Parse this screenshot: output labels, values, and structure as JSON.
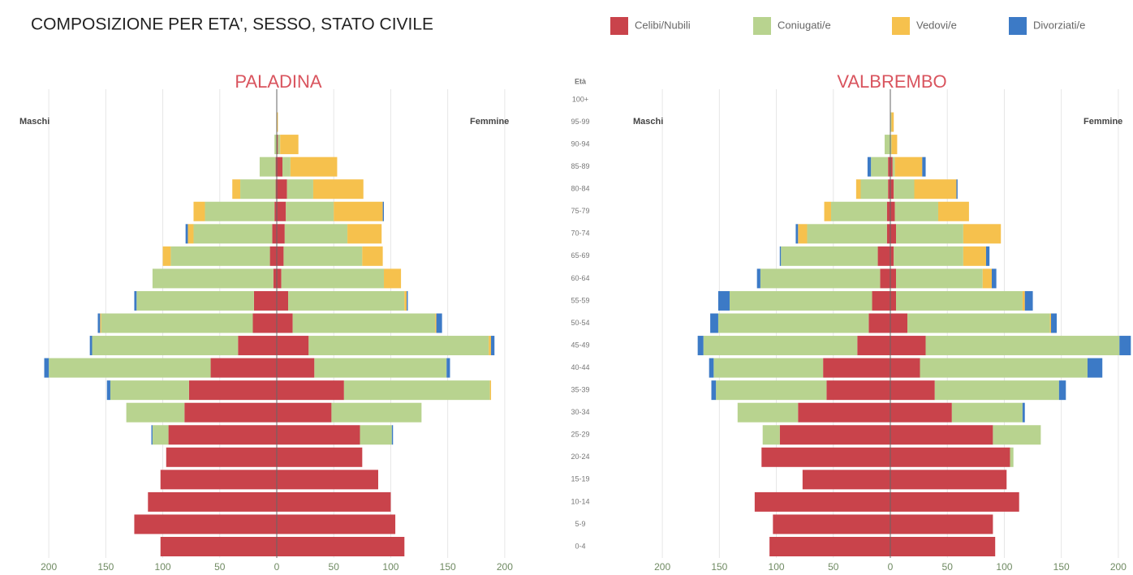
{
  "title": "COMPOSIZIONE PER ETA', SESSO, STATO CIVILE",
  "legend": [
    {
      "name": "Celibi/Nubili",
      "color": "#c9434b"
    },
    {
      "name": "Coniugati/e",
      "color": "#b8d38f"
    },
    {
      "name": "Vedovi/e",
      "color": "#f6c14d"
    },
    {
      "name": "Divorziati/e",
      "color": "#3c7ac6"
    }
  ],
  "age_label": "Età",
  "categories": [
    "100+",
    "95-99",
    "90-94",
    "85-89",
    "80-84",
    "75-79",
    "70-74",
    "65-69",
    "60-64",
    "55-59",
    "50-54",
    "45-49",
    "40-44",
    "35-39",
    "30-34",
    "25-29",
    "20-24",
    "15-19",
    "10-14",
    "5-9",
    "0-4"
  ],
  "chart_data": [
    {
      "type": "pyramid",
      "title": "PALADINA",
      "left_label": "Maschi",
      "right_label": "Femmine",
      "xlim": [
        -225,
        225
      ],
      "xticks": [
        {
          "value": -200,
          "label": "200"
        },
        {
          "value": -150,
          "label": "150"
        },
        {
          "value": -100,
          "label": "100"
        },
        {
          "value": -50,
          "label": "50"
        },
        0,
        50,
        100,
        150,
        200
      ],
      "grid": true,
      "series": [
        {
          "male": [
            0,
            0,
            0,
            -1,
            -1,
            -2,
            -4,
            -6,
            -3,
            -20,
            -21,
            -34,
            -58,
            -77,
            -81,
            -95,
            -97,
            -102,
            -113,
            -125,
            -102
          ],
          "female": [
            0,
            0,
            1,
            5,
            9,
            8,
            7,
            6,
            4,
            10,
            14,
            28,
            33,
            59,
            48,
            73,
            75,
            89,
            100,
            104,
            112
          ]
        },
        {
          "male": [
            0,
            0,
            -2,
            -14,
            -31,
            -61,
            -69,
            -87,
            -106,
            -103,
            -133,
            -128,
            -142,
            -69,
            -51,
            -14,
            0,
            0,
            0,
            0,
            0
          ],
          "female": [
            0,
            0,
            2,
            7,
            23,
            42,
            55,
            69,
            90,
            102,
            125,
            158,
            116,
            128,
            79,
            28,
            0,
            0,
            0,
            0,
            0
          ]
        },
        {
          "male": [
            0,
            0,
            0,
            0,
            -7,
            -10,
            -5,
            -7,
            0,
            0,
            -1,
            0,
            0,
            0,
            0,
            0,
            0,
            0,
            0,
            0,
            0
          ],
          "female": [
            0,
            1,
            16,
            41,
            44,
            43,
            30,
            18,
            15,
            2,
            1,
            2,
            0,
            1,
            0,
            0,
            0,
            0,
            0,
            0,
            0
          ]
        },
        {
          "male": [
            0,
            0,
            0,
            0,
            0,
            0,
            -2,
            0,
            0,
            -2,
            -2,
            -2,
            -4,
            -3,
            0,
            -1,
            0,
            0,
            0,
            0,
            0
          ],
          "female": [
            0,
            0,
            0,
            0,
            0,
            1,
            0,
            0,
            0,
            1,
            5,
            3,
            3,
            0,
            0,
            1,
            0,
            0,
            0,
            0,
            0
          ]
        }
      ]
    },
    {
      "type": "pyramid",
      "title": "VALBREMBO",
      "left_label": "Maschi",
      "right_label": "Femmine",
      "xlim": [
        -225,
        225
      ],
      "xticks": [
        {
          "value": -200,
          "label": "200"
        },
        {
          "value": -150,
          "label": "150"
        },
        {
          "value": -100,
          "label": "100"
        },
        {
          "value": -50,
          "label": "50"
        },
        0,
        50,
        100,
        150,
        200
      ],
      "grid": true,
      "series": [
        {
          "male": [
            0,
            0,
            0,
            -2,
            -2,
            -3,
            -3,
            -11,
            -9,
            -16,
            -19,
            -29,
            -59,
            -56,
            -81,
            -97,
            -113,
            -77,
            -119,
            -103,
            -106
          ],
          "female": [
            0,
            0,
            0,
            2,
            3,
            4,
            5,
            3,
            5,
            5,
            15,
            31,
            26,
            39,
            54,
            90,
            105,
            102,
            113,
            90,
            92
          ]
        },
        {
          "male": [
            0,
            0,
            -5,
            -15,
            -24,
            -49,
            -70,
            -85,
            -105,
            -125,
            -132,
            -135,
            -96,
            -97,
            -53,
            -15,
            0,
            0,
            0,
            0,
            0
          ],
          "female": [
            0,
            1,
            1,
            2,
            18,
            38,
            59,
            61,
            76,
            111,
            125,
            170,
            147,
            109,
            62,
            42,
            3,
            0,
            0,
            0,
            0
          ]
        },
        {
          "male": [
            0,
            0,
            0,
            0,
            -4,
            -6,
            -8,
            0,
            0,
            0,
            0,
            0,
            0,
            0,
            0,
            0,
            0,
            0,
            0,
            0,
            0
          ],
          "female": [
            0,
            2,
            5,
            24,
            37,
            27,
            33,
            20,
            8,
            2,
            1,
            0,
            0,
            0,
            0,
            0,
            0,
            0,
            0,
            0,
            0
          ]
        },
        {
          "male": [
            0,
            0,
            0,
            -3,
            0,
            0,
            -2,
            -1,
            -3,
            -10,
            -7,
            -5,
            -4,
            -4,
            0,
            0,
            0,
            0,
            0,
            0,
            0
          ],
          "female": [
            0,
            0,
            0,
            3,
            1,
            0,
            0,
            3,
            4,
            7,
            5,
            10,
            13,
            6,
            2,
            0,
            0,
            0,
            0,
            0,
            0
          ]
        }
      ]
    }
  ]
}
